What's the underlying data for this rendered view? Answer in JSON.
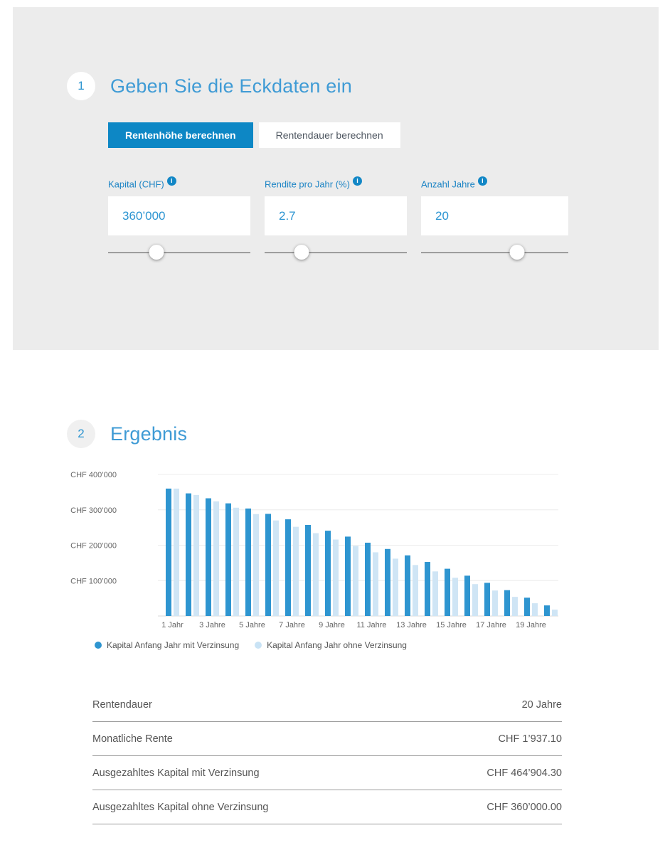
{
  "colors": {
    "accent_blue": "#2e95d0",
    "title_blue": "#3f9bd5",
    "tab_active_bg": "#0d87c5",
    "panel_gray": "#ececec"
  },
  "section1": {
    "number": "1",
    "title": "Geben Sie die Eckdaten ein",
    "tabs": [
      {
        "label": "Rentenhöhe berechnen",
        "active": true
      },
      {
        "label": "Rentendauer berechnen",
        "active": false
      }
    ],
    "fields": [
      {
        "label": "Kapital (CHF)",
        "info_icon": "i",
        "value": "360’000",
        "slider_pct": 34
      },
      {
        "label": "Rendite pro Jahr (%)",
        "info_icon": "i",
        "value": "2.7",
        "slider_pct": 26
      },
      {
        "label": "Anzahl Jahre",
        "info_icon": "i",
        "value": "20",
        "slider_pct": 65
      }
    ]
  },
  "section2": {
    "number": "2",
    "title": "Ergebnis",
    "results": [
      {
        "label": "Rentendauer",
        "value": "20 Jahre"
      },
      {
        "label": "Monatliche Rente",
        "value": "CHF 1’937.10"
      },
      {
        "label": "Ausgezahltes Kapital mit Verzinsung",
        "value": "CHF 464’904.30"
      },
      {
        "label": "Ausgezahltes Kapital ohne Verzinsung",
        "value": "CHF 360’000.00"
      }
    ]
  },
  "chart_data": {
    "type": "bar",
    "title": "",
    "xlabel": "",
    "ylabel": "",
    "ylim": [
      0,
      400000
    ],
    "grid": true,
    "legend_position": "bottom",
    "categories": [
      "1 Jahr",
      "2 Jahre",
      "3 Jahre",
      "4 Jahre",
      "5 Jahre",
      "6 Jahre",
      "7 Jahre",
      "8 Jahre",
      "9 Jahre",
      "10 Jahre",
      "11 Jahre",
      "12 Jahre",
      "13 Jahre",
      "14 Jahre",
      "15 Jahre",
      "16 Jahre",
      "17 Jahre",
      "18 Jahre",
      "19 Jahre",
      "20 Jahre"
    ],
    "x_labels_every": 2,
    "ytick_values": [
      100000,
      200000,
      300000,
      400000
    ],
    "ytick_labels": [
      "CHF 100’000",
      "CHF 200’000",
      "CHF 300’000",
      "CHF 400’000"
    ],
    "series": [
      {
        "name": "Kapital Anfang Jahr mit Verzinsung",
        "color": "#2e95d0",
        "values": [
          360000,
          346500,
          332600,
          318300,
          303700,
          288600,
          273200,
          257300,
          241000,
          224300,
          207100,
          189400,
          171300,
          152700,
          133500,
          113900,
          93700,
          73000,
          51700,
          29900
        ]
      },
      {
        "name": "Kapital Anfang Jahr ohne Verzinsung",
        "color": "#cfe5f5",
        "values": [
          360000,
          342000,
          324000,
          306000,
          288000,
          270000,
          252000,
          234000,
          216000,
          198000,
          180000,
          162000,
          144000,
          126000,
          108000,
          90000,
          72000,
          54000,
          36000,
          18000
        ]
      }
    ]
  }
}
